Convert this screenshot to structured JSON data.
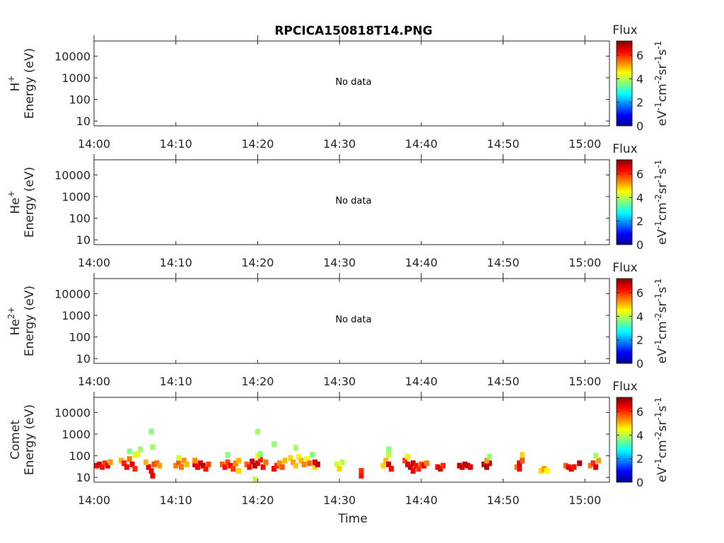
{
  "title": "RPCICA150818T14.PNG",
  "xlabel": "Time",
  "colorbar": {
    "label": "Flux",
    "unit_parts": [
      "eV",
      "-1",
      "cm",
      "-2",
      "sr",
      "-1",
      "s",
      "-1"
    ],
    "ticks": [
      "0",
      "2",
      "4",
      "6"
    ],
    "range": [
      0,
      7.2
    ],
    "colormap": "jet"
  },
  "chart_data": [
    {
      "type": "heatmap",
      "species": "H",
      "species_sup": "+",
      "ylabel": "Energy (eV)",
      "yscale": "log",
      "ylim": [
        6,
        50000
      ],
      "yticks": [
        "10",
        "100",
        "1000",
        "10000"
      ],
      "xticks": [
        "14:00",
        "14:10",
        "14:20",
        "14:30",
        "14:40",
        "14:50",
        "15:00"
      ],
      "xlim": [
        "14:00",
        "15:03"
      ],
      "message": "No data",
      "cells": []
    },
    {
      "type": "heatmap",
      "species": "He",
      "species_sup": "+",
      "ylabel": "Energy (eV)",
      "yscale": "log",
      "ylim": [
        6,
        50000
      ],
      "yticks": [
        "10",
        "100",
        "1000",
        "10000"
      ],
      "xticks": [
        "14:00",
        "14:10",
        "14:20",
        "14:30",
        "14:40",
        "14:50",
        "15:00"
      ],
      "xlim": [
        "14:00",
        "15:03"
      ],
      "message": "No data",
      "cells": []
    },
    {
      "type": "heatmap",
      "species": "He",
      "species_sup": "2+",
      "ylabel": "Energy (eV)",
      "yscale": "log",
      "ylim": [
        6,
        50000
      ],
      "yticks": [
        "10",
        "100",
        "1000",
        "10000"
      ],
      "xticks": [
        "14:00",
        "14:10",
        "14:20",
        "14:30",
        "14:40",
        "14:50",
        "15:00"
      ],
      "xlim": [
        "14:00",
        "15:03"
      ],
      "message": "No data",
      "cells": []
    },
    {
      "type": "heatmap",
      "species": "Comet",
      "species_sup": "",
      "ylabel": "Energy (eV)",
      "yscale": "log",
      "ylim": [
        6,
        50000
      ],
      "yticks": [
        "10",
        "100",
        "1000",
        "10000"
      ],
      "xticks": [
        "14:00",
        "14:10",
        "14:20",
        "14:30",
        "14:40",
        "14:50",
        "15:00"
      ],
      "xlim": [
        "14:00",
        "15:03"
      ],
      "message": "",
      "cells": [
        {
          "t": "14:00:20",
          "e": 35,
          "v": 6.3
        },
        {
          "t": "14:00:40",
          "e": 40,
          "v": 6.6
        },
        {
          "t": "14:01:00",
          "e": 30,
          "v": 6.2
        },
        {
          "t": "14:01:20",
          "e": 45,
          "v": 5.9
        },
        {
          "t": "14:01:40",
          "e": 35,
          "v": 6.5
        },
        {
          "t": "14:02:00",
          "e": 50,
          "v": 5.2
        },
        {
          "t": "14:03:20",
          "e": 60,
          "v": 5.0
        },
        {
          "t": "14:03:40",
          "e": 45,
          "v": 6.1
        },
        {
          "t": "14:04:00",
          "e": 30,
          "v": 6.4
        },
        {
          "t": "14:04:20",
          "e": 70,
          "v": 5.5
        },
        {
          "t": "14:04:40",
          "e": 40,
          "v": 6.6
        },
        {
          "t": "14:05:00",
          "e": 25,
          "v": 6.0
        },
        {
          "t": "14:05:20",
          "e": 120,
          "v": 4.6
        },
        {
          "t": "14:05:40",
          "e": 200,
          "v": 3.8
        },
        {
          "t": "14:05:00",
          "e": 110,
          "v": 4.2
        },
        {
          "t": "14:04:20",
          "e": 160,
          "v": 3.6
        },
        {
          "t": "14:07:00",
          "e": 1300,
          "v": 3.6
        },
        {
          "t": "14:07:10",
          "e": 250,
          "v": 3.8
        },
        {
          "t": "14:06:40",
          "e": 30,
          "v": 6.5
        },
        {
          "t": "14:07:00",
          "e": 20,
          "v": 6.3
        },
        {
          "t": "14:07:20",
          "e": 40,
          "v": 5.8
        },
        {
          "t": "14:07:40",
          "e": 45,
          "v": 5.6
        },
        {
          "t": "14:08:00",
          "e": 35,
          "v": 5.2
        },
        {
          "t": "14:06:20",
          "e": 50,
          "v": 5.0
        },
        {
          "t": "14:07:10",
          "e": 12,
          "v": 6.4
        },
        {
          "t": "14:10:00",
          "e": 35,
          "v": 5.4
        },
        {
          "t": "14:10:20",
          "e": 50,
          "v": 5.7
        },
        {
          "t": "14:10:40",
          "e": 30,
          "v": 5.5
        },
        {
          "t": "14:11:00",
          "e": 60,
          "v": 5.3
        },
        {
          "t": "14:11:20",
          "e": 40,
          "v": 5.0
        },
        {
          "t": "14:10:20",
          "e": 80,
          "v": 4.2
        },
        {
          "t": "14:12:20",
          "e": 40,
          "v": 6.6
        },
        {
          "t": "14:12:40",
          "e": 30,
          "v": 6.4
        },
        {
          "t": "14:13:00",
          "e": 45,
          "v": 6.5
        },
        {
          "t": "14:13:20",
          "e": 35,
          "v": 6.8
        },
        {
          "t": "14:13:40",
          "e": 25,
          "v": 6.2
        },
        {
          "t": "14:14:00",
          "e": 40,
          "v": 5.8
        },
        {
          "t": "14:12:20",
          "e": 60,
          "v": 5.3
        },
        {
          "t": "14:15:40",
          "e": 40,
          "v": 5.6
        },
        {
          "t": "14:16:00",
          "e": 30,
          "v": 6.2
        },
        {
          "t": "14:16:20",
          "e": 50,
          "v": 5.8
        },
        {
          "t": "14:16:40",
          "e": 35,
          "v": 6.3
        },
        {
          "t": "14:17:00",
          "e": 25,
          "v": 5.9
        },
        {
          "t": "14:17:20",
          "e": 45,
          "v": 5.4
        },
        {
          "t": "14:16:20",
          "e": 110,
          "v": 3.6
        },
        {
          "t": "14:17:40",
          "e": 60,
          "v": 5.0
        },
        {
          "t": "14:17:40",
          "e": 20,
          "v": 4.8
        },
        {
          "t": "14:18:40",
          "e": 40,
          "v": 5.6
        },
        {
          "t": "14:19:00",
          "e": 30,
          "v": 6.2
        },
        {
          "t": "14:19:20",
          "e": 55,
          "v": 6.6
        },
        {
          "t": "14:19:40",
          "e": 35,
          "v": 6.8
        },
        {
          "t": "14:20:00",
          "e": 45,
          "v": 6.5
        },
        {
          "t": "14:20:20",
          "e": 65,
          "v": 6.1
        },
        {
          "t": "14:20:40",
          "e": 30,
          "v": 6.3
        },
        {
          "t": "14:21:00",
          "e": 50,
          "v": 5.5
        },
        {
          "t": "14:20:00",
          "e": 100,
          "v": 4.4
        },
        {
          "t": "14:20:20",
          "e": 120,
          "v": 3.6
        },
        {
          "t": "14:20:00",
          "e": 1300,
          "v": 3.8
        },
        {
          "t": "14:19:40",
          "e": 8,
          "v": 4.0
        },
        {
          "t": "14:22:00",
          "e": 25,
          "v": 6.4
        },
        {
          "t": "14:22:20",
          "e": 35,
          "v": 6.0
        },
        {
          "t": "14:22:40",
          "e": 45,
          "v": 5.3
        },
        {
          "t": "14:23:00",
          "e": 30,
          "v": 5.7
        },
        {
          "t": "14:23:20",
          "e": 60,
          "v": 5.0
        },
        {
          "t": "14:22:00",
          "e": 340,
          "v": 3.7
        },
        {
          "t": "14:24:00",
          "e": 80,
          "v": 4.8
        },
        {
          "t": "14:24:20",
          "e": 50,
          "v": 5.2
        },
        {
          "t": "14:24:40",
          "e": 35,
          "v": 4.9
        },
        {
          "t": "14:25:00",
          "e": 90,
          "v": 4.6
        },
        {
          "t": "14:25:20",
          "e": 60,
          "v": 5.0
        },
        {
          "t": "14:25:40",
          "e": 40,
          "v": 5.4
        },
        {
          "t": "14:26:00",
          "e": 70,
          "v": 4.4
        },
        {
          "t": "14:26:20",
          "e": 45,
          "v": 5.6
        },
        {
          "t": "14:26:40",
          "e": 110,
          "v": 3.6
        },
        {
          "t": "14:27:00",
          "e": 30,
          "v": 4.8
        },
        {
          "t": "14:27:00",
          "e": 50,
          "v": 6.5
        },
        {
          "t": "14:27:20",
          "e": 40,
          "v": 6.8
        },
        {
          "t": "14:24:40",
          "e": 230,
          "v": 3.8
        },
        {
          "t": "14:29:40",
          "e": 40,
          "v": 4.2
        },
        {
          "t": "14:30:00",
          "e": 25,
          "v": 4.8
        },
        {
          "t": "14:30:20",
          "e": 50,
          "v": 4.0
        },
        {
          "t": "14:32:40",
          "e": 12,
          "v": 6.2
        },
        {
          "t": "14:32:40",
          "e": 20,
          "v": 6.0
        },
        {
          "t": "14:35:20",
          "e": 35,
          "v": 4.8
        },
        {
          "t": "14:35:40",
          "e": 60,
          "v": 5.0
        },
        {
          "t": "14:36:00",
          "e": 110,
          "v": 4.0
        },
        {
          "t": "14:36:00",
          "e": 40,
          "v": 6.7
        },
        {
          "t": "14:36:20",
          "e": 25,
          "v": 6.3
        },
        {
          "t": "14:36:00",
          "e": 200,
          "v": 3.7
        },
        {
          "t": "14:38:00",
          "e": 60,
          "v": 5.8
        },
        {
          "t": "14:38:20",
          "e": 40,
          "v": 6.5
        },
        {
          "t": "14:38:40",
          "e": 30,
          "v": 6.6
        },
        {
          "t": "14:39:00",
          "e": 45,
          "v": 6.7
        },
        {
          "t": "14:39:20",
          "e": 35,
          "v": 6.2
        },
        {
          "t": "14:39:40",
          "e": 25,
          "v": 6.0
        },
        {
          "t": "14:40:00",
          "e": 40,
          "v": 5.8
        },
        {
          "t": "14:38:20",
          "e": 90,
          "v": 4.6
        },
        {
          "t": "14:39:00",
          "e": 20,
          "v": 6.4
        },
        {
          "t": "14:40:20",
          "e": 35,
          "v": 6.3
        },
        {
          "t": "14:40:40",
          "e": 45,
          "v": 5.4
        },
        {
          "t": "14:42:00",
          "e": 30,
          "v": 6.3
        },
        {
          "t": "14:42:20",
          "e": 25,
          "v": 6.6
        },
        {
          "t": "14:42:40",
          "e": 35,
          "v": 6.0
        },
        {
          "t": "14:44:40",
          "e": 35,
          "v": 6.7
        },
        {
          "t": "14:45:00",
          "e": 30,
          "v": 6.6
        },
        {
          "t": "14:45:20",
          "e": 40,
          "v": 6.8
        },
        {
          "t": "14:45:40",
          "e": 35,
          "v": 6.7
        },
        {
          "t": "14:46:00",
          "e": 30,
          "v": 6.6
        },
        {
          "t": "14:47:40",
          "e": 40,
          "v": 6.7
        },
        {
          "t": "14:48:00",
          "e": 30,
          "v": 6.8
        },
        {
          "t": "14:48:20",
          "e": 45,
          "v": 6.6
        },
        {
          "t": "14:48:00",
          "e": 60,
          "v": 5.2
        },
        {
          "t": "14:48:20",
          "e": 90,
          "v": 3.7
        },
        {
          "t": "14:51:40",
          "e": 30,
          "v": 5.4
        },
        {
          "t": "14:52:00",
          "e": 45,
          "v": 6.5
        },
        {
          "t": "14:52:20",
          "e": 60,
          "v": 5.7
        },
        {
          "t": "14:52:20",
          "e": 110,
          "v": 4.8
        },
        {
          "t": "14:52:00",
          "e": 25,
          "v": 6.3
        },
        {
          "t": "14:54:40",
          "e": 20,
          "v": 4.8
        },
        {
          "t": "14:55:00",
          "e": 25,
          "v": 5.2
        },
        {
          "t": "14:55:20",
          "e": 20,
          "v": 4.5
        },
        {
          "t": "14:57:40",
          "e": 35,
          "v": 5.6
        },
        {
          "t": "14:58:00",
          "e": 30,
          "v": 6.4
        },
        {
          "t": "14:58:20",
          "e": 25,
          "v": 6.6
        },
        {
          "t": "14:58:40",
          "e": 30,
          "v": 6.2
        },
        {
          "t": "14:59:20",
          "e": 45,
          "v": 6.8
        },
        {
          "t": "15:00:40",
          "e": 35,
          "v": 5.4
        },
        {
          "t": "15:01:00",
          "e": 45,
          "v": 6.0
        },
        {
          "t": "15:01:20",
          "e": 30,
          "v": 6.6
        },
        {
          "t": "15:01:40",
          "e": 60,
          "v": 5.2
        },
        {
          "t": "15:01:20",
          "e": 100,
          "v": 3.8
        }
      ]
    }
  ]
}
